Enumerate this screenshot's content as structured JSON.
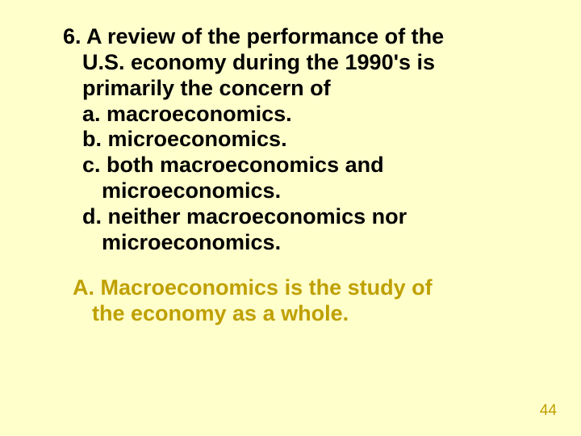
{
  "background_color": "#ffffcc",
  "question": {
    "text_color": "#000000",
    "font_size_pt": 20,
    "font_weight": "bold",
    "stem_line1": "6. A review of the performance of the",
    "stem_line2": "U.S. economy during the 1990's is",
    "stem_line3": "primarily the concern of",
    "options": {
      "a": "a. macroeconomics.",
      "b": "b. microeconomics.",
      "c_line1": "c. both macroeconomics and",
      "c_line2": "microeconomics.",
      "d_line1": "d. neither macroeconomics nor",
      "d_line2": "microeconomics."
    }
  },
  "answer": {
    "text_color": "#bfa000",
    "font_size_pt": 20,
    "font_weight": "bold",
    "line1": "A. Macroeconomics is the study of",
    "line2": "the economy as a whole."
  },
  "page_number": "44",
  "page_number_color": "#bfa000"
}
